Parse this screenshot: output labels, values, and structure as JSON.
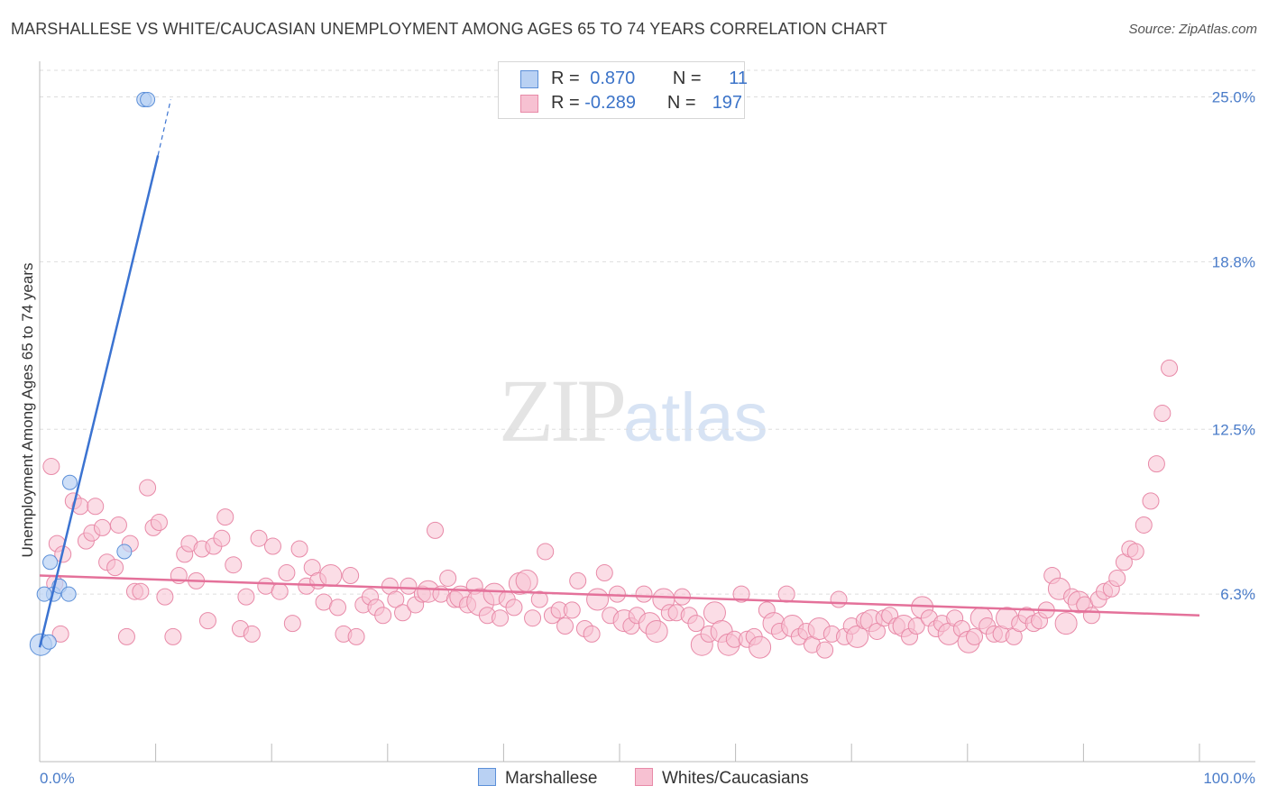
{
  "title": "MARSHALLESE VS WHITE/CAUCASIAN UNEMPLOYMENT AMONG AGES 65 TO 74 YEARS CORRELATION CHART",
  "source": "Source: ZipAtlas.com",
  "watermark": {
    "zip": "ZIP",
    "atlas": "atlas"
  },
  "legend": {
    "rows": [
      {
        "r_label": "R = ",
        "r_value": "0.870",
        "n_label": "N = ",
        "n_value": "11"
      },
      {
        "r_label": "R = ",
        "r_value": "-0.289",
        "n_label": "N = ",
        "n_value": "197"
      }
    ]
  },
  "colors": {
    "blue_fill": "#b9d1f3",
    "blue_stroke": "#5b8fd8",
    "blue_line": "#3b73d1",
    "pink_fill": "#f7c1d2",
    "pink_stroke": "#e88aa8",
    "pink_line": "#e4719a",
    "tick_label": "#4a7cc9",
    "grid": "#dddddd"
  },
  "chart_data": {
    "type": "scatter",
    "title": "MARSHALLESE VS WHITE/CAUCASIAN UNEMPLOYMENT AMONG AGES 65 TO 74 YEARS CORRELATION CHART",
    "xlabel": "",
    "ylabel": "Unemployment Among Ages 65 to 74 years",
    "xlim": [
      0,
      100
    ],
    "ylim": [
      0,
      26.0
    ],
    "x_tick_labels": [
      "0.0%",
      "100.0%"
    ],
    "y_ticks": [
      6.3,
      12.5,
      18.8,
      25.0
    ],
    "y_tick_labels": [
      "6.3%",
      "12.5%",
      "18.8%",
      "25.0%"
    ],
    "legend_bottom": [
      "Marshallese",
      "Whites/Caucasians"
    ],
    "series": [
      {
        "name": "Marshallese",
        "color": "#b9d1f3",
        "r": 0.87,
        "n": 11,
        "trend": {
          "x0": 0.0,
          "y0": 4.3,
          "x1": 10.2,
          "y1": 22.8,
          "x_dash_end": 11.3,
          "y_dash_end": 24.9
        },
        "points": [
          [
            0.1,
            4.4,
            3
          ],
          [
            0.8,
            4.5,
            2
          ],
          [
            1.2,
            6.3,
            2
          ],
          [
            1.7,
            6.6,
            2
          ],
          [
            0.9,
            7.5,
            2
          ],
          [
            2.5,
            6.3,
            2
          ],
          [
            2.6,
            10.5,
            2
          ],
          [
            7.3,
            7.9,
            2
          ],
          [
            9.0,
            24.9,
            2
          ],
          [
            9.3,
            24.9,
            2
          ],
          [
            0.4,
            6.3,
            2
          ]
        ]
      },
      {
        "name": "Whites/Caucasians",
        "color": "#f7c1d2",
        "r": -0.289,
        "n": 197,
        "trend": {
          "x0": 0.0,
          "y0": 7.0,
          "x1": 100.0,
          "y1": 5.5
        },
        "points": [
          [
            1.0,
            11.1,
            2
          ],
          [
            1.5,
            8.2,
            2
          ],
          [
            2.0,
            7.8,
            2
          ],
          [
            1.3,
            6.7,
            2
          ],
          [
            1.8,
            4.8,
            2
          ],
          [
            2.9,
            9.8,
            2
          ],
          [
            3.5,
            9.6,
            2
          ],
          [
            4.0,
            8.3,
            2
          ],
          [
            4.5,
            8.6,
            2
          ],
          [
            4.8,
            9.6,
            2
          ],
          [
            5.4,
            8.8,
            2
          ],
          [
            5.8,
            7.5,
            2
          ],
          [
            6.5,
            7.3,
            2
          ],
          [
            6.8,
            8.9,
            2
          ],
          [
            7.5,
            4.7,
            2
          ],
          [
            7.8,
            8.2,
            2
          ],
          [
            8.2,
            6.4,
            2
          ],
          [
            8.7,
            6.4,
            2
          ],
          [
            9.3,
            10.3,
            2
          ],
          [
            9.8,
            8.8,
            2
          ],
          [
            10.3,
            9.0,
            2
          ],
          [
            10.8,
            6.2,
            2
          ],
          [
            11.5,
            4.7,
            2
          ],
          [
            12.0,
            7.0,
            2
          ],
          [
            12.5,
            7.8,
            2
          ],
          [
            12.9,
            8.2,
            2
          ],
          [
            13.5,
            6.8,
            2
          ],
          [
            14.0,
            8.0,
            2
          ],
          [
            14.5,
            5.3,
            2
          ],
          [
            15.0,
            8.1,
            2
          ],
          [
            15.7,
            8.4,
            2
          ],
          [
            16.0,
            9.2,
            2
          ],
          [
            16.7,
            7.4,
            2
          ],
          [
            17.3,
            5.0,
            2
          ],
          [
            17.8,
            6.2,
            2
          ],
          [
            18.3,
            4.8,
            2
          ],
          [
            18.9,
            8.4,
            2
          ],
          [
            19.5,
            6.6,
            2
          ],
          [
            20.1,
            8.1,
            2
          ],
          [
            20.7,
            6.4,
            2
          ],
          [
            21.3,
            7.1,
            2
          ],
          [
            21.8,
            5.2,
            2
          ],
          [
            22.4,
            8.0,
            2
          ],
          [
            23.0,
            6.6,
            2
          ],
          [
            23.5,
            7.3,
            2
          ],
          [
            24.0,
            6.8,
            2
          ],
          [
            24.5,
            6.0,
            2
          ],
          [
            25.1,
            7.0,
            3
          ],
          [
            25.7,
            5.8,
            2
          ],
          [
            26.2,
            4.8,
            2
          ],
          [
            26.8,
            7.0,
            2
          ],
          [
            27.3,
            4.7,
            2
          ],
          [
            27.9,
            5.9,
            2
          ],
          [
            28.5,
            6.2,
            2
          ],
          [
            29.0,
            5.8,
            2
          ],
          [
            29.6,
            5.5,
            2
          ],
          [
            30.2,
            6.6,
            2
          ],
          [
            30.7,
            6.1,
            2
          ],
          [
            31.3,
            5.6,
            2
          ],
          [
            31.8,
            6.6,
            2
          ],
          [
            32.4,
            5.9,
            2
          ],
          [
            33.0,
            6.3,
            2
          ],
          [
            33.5,
            6.4,
            3
          ],
          [
            34.1,
            8.7,
            2
          ],
          [
            34.6,
            6.3,
            2
          ],
          [
            35.2,
            6.9,
            2
          ],
          [
            35.8,
            6.1,
            2
          ],
          [
            36.3,
            6.2,
            3
          ],
          [
            36.9,
            5.9,
            2
          ],
          [
            37.5,
            6.6,
            2
          ],
          [
            38.0,
            6.0,
            4
          ],
          [
            38.6,
            5.5,
            2
          ],
          [
            39.2,
            6.3,
            3
          ],
          [
            39.7,
            5.4,
            2
          ],
          [
            40.3,
            6.1,
            2
          ],
          [
            40.9,
            5.8,
            2
          ],
          [
            41.4,
            6.7,
            3
          ],
          [
            42.0,
            6.8,
            3
          ],
          [
            42.5,
            5.4,
            2
          ],
          [
            43.1,
            6.1,
            2
          ],
          [
            43.6,
            7.9,
            2
          ],
          [
            44.2,
            5.5,
            2
          ],
          [
            44.8,
            5.7,
            2
          ],
          [
            45.3,
            5.1,
            2
          ],
          [
            45.9,
            5.7,
            2
          ],
          [
            46.4,
            6.8,
            2
          ],
          [
            47.0,
            5.0,
            2
          ],
          [
            47.6,
            4.8,
            2
          ],
          [
            48.1,
            6.1,
            3
          ],
          [
            48.7,
            7.1,
            2
          ],
          [
            49.2,
            5.5,
            2
          ],
          [
            49.8,
            6.3,
            2
          ],
          [
            50.4,
            5.3,
            3
          ],
          [
            51.0,
            5.1,
            2
          ],
          [
            51.5,
            5.5,
            2
          ],
          [
            52.1,
            6.3,
            2
          ],
          [
            52.6,
            5.2,
            3
          ],
          [
            53.2,
            4.9,
            3
          ],
          [
            53.8,
            6.1,
            3
          ],
          [
            54.3,
            5.6,
            2
          ],
          [
            54.9,
            5.6,
            2
          ],
          [
            55.4,
            6.2,
            2
          ],
          [
            56.0,
            5.5,
            2
          ],
          [
            56.6,
            5.2,
            2
          ],
          [
            57.1,
            4.4,
            3
          ],
          [
            57.7,
            4.8,
            2
          ],
          [
            58.2,
            5.6,
            3
          ],
          [
            58.8,
            4.9,
            3
          ],
          [
            59.4,
            4.4,
            3
          ],
          [
            59.9,
            4.6,
            2
          ],
          [
            60.5,
            6.3,
            2
          ],
          [
            61.0,
            4.6,
            2
          ],
          [
            61.6,
            4.7,
            2
          ],
          [
            62.1,
            4.3,
            3
          ],
          [
            62.7,
            5.7,
            2
          ],
          [
            63.3,
            5.2,
            3
          ],
          [
            63.8,
            4.9,
            2
          ],
          [
            64.4,
            6.3,
            2
          ],
          [
            64.9,
            5.1,
            3
          ],
          [
            65.5,
            4.7,
            2
          ],
          [
            66.1,
            4.9,
            2
          ],
          [
            66.6,
            4.4,
            2
          ],
          [
            67.2,
            5.0,
            3
          ],
          [
            67.7,
            4.2,
            2
          ],
          [
            68.3,
            4.8,
            2
          ],
          [
            68.9,
            6.1,
            2
          ],
          [
            69.4,
            4.7,
            2
          ],
          [
            70.0,
            5.1,
            2
          ],
          [
            70.5,
            4.7,
            3
          ],
          [
            71.1,
            5.3,
            2
          ],
          [
            71.7,
            5.3,
            3
          ],
          [
            72.2,
            4.9,
            2
          ],
          [
            72.8,
            5.4,
            2
          ],
          [
            73.3,
            5.5,
            2
          ],
          [
            73.9,
            5.1,
            2
          ],
          [
            74.5,
            5.1,
            3
          ],
          [
            75.0,
            4.7,
            2
          ],
          [
            75.6,
            5.1,
            2
          ],
          [
            76.1,
            5.8,
            3
          ],
          [
            76.7,
            5.4,
            2
          ],
          [
            77.3,
            5.0,
            2
          ],
          [
            77.8,
            5.2,
            2
          ],
          [
            78.4,
            4.8,
            3
          ],
          [
            78.9,
            5.4,
            2
          ],
          [
            79.5,
            5.0,
            2
          ],
          [
            80.1,
            4.5,
            3
          ],
          [
            80.6,
            4.7,
            2
          ],
          [
            81.2,
            5.4,
            3
          ],
          [
            81.7,
            5.1,
            2
          ],
          [
            82.3,
            4.8,
            2
          ],
          [
            82.9,
            4.8,
            2
          ],
          [
            83.4,
            5.4,
            3
          ],
          [
            84.0,
            4.7,
            2
          ],
          [
            84.5,
            5.2,
            2
          ],
          [
            85.1,
            5.5,
            2
          ],
          [
            85.7,
            5.2,
            2
          ],
          [
            86.2,
            5.3,
            2
          ],
          [
            86.8,
            5.7,
            2
          ],
          [
            87.3,
            7.0,
            2
          ],
          [
            87.9,
            6.5,
            3
          ],
          [
            88.5,
            5.2,
            3
          ],
          [
            89.0,
            6.2,
            2
          ],
          [
            89.6,
            6.0,
            3
          ],
          [
            90.1,
            5.9,
            2
          ],
          [
            90.7,
            5.5,
            2
          ],
          [
            91.3,
            6.1,
            2
          ],
          [
            91.8,
            6.4,
            2
          ],
          [
            92.4,
            6.5,
            2
          ],
          [
            92.9,
            6.9,
            2
          ],
          [
            93.5,
            7.5,
            2
          ],
          [
            94.0,
            8.0,
            2
          ],
          [
            94.5,
            7.9,
            2
          ],
          [
            95.2,
            8.9,
            2
          ],
          [
            95.8,
            9.8,
            2
          ],
          [
            96.3,
            11.2,
            2
          ],
          [
            96.8,
            13.1,
            2
          ],
          [
            97.4,
            14.8,
            2
          ]
        ]
      }
    ]
  }
}
